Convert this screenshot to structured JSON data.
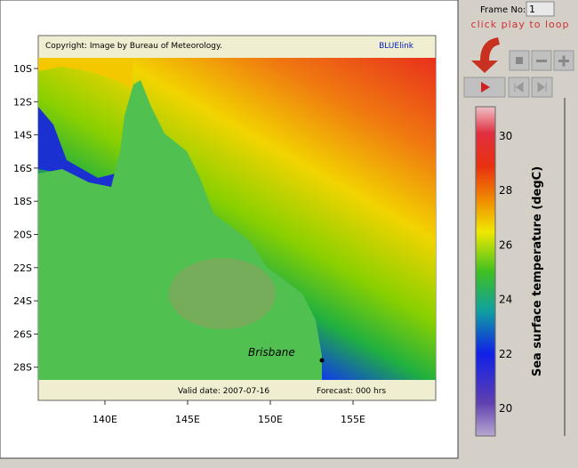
{
  "controls": {
    "frame_label": "Frame No:",
    "frame_value": "1",
    "hint": "click play to loop"
  },
  "map": {
    "copyright": "Copyright: Image by Bureau of Meteorology.",
    "brand": "BLUElink",
    "lat_labels": [
      "10S",
      "12S",
      "14S",
      "16S",
      "18S",
      "20S",
      "22S",
      "24S",
      "26S",
      "28S"
    ],
    "lon_labels": [
      "140E",
      "145E",
      "150E",
      "155E"
    ],
    "place": "Brisbane",
    "valid_date": "Valid date: 2007-07-16",
    "forecast": "Forecast: 000 hrs"
  },
  "colorbar": {
    "label": "Sea surface temperature (degC)",
    "ticks": [
      20,
      22,
      24,
      26,
      28,
      30
    ]
  }
}
